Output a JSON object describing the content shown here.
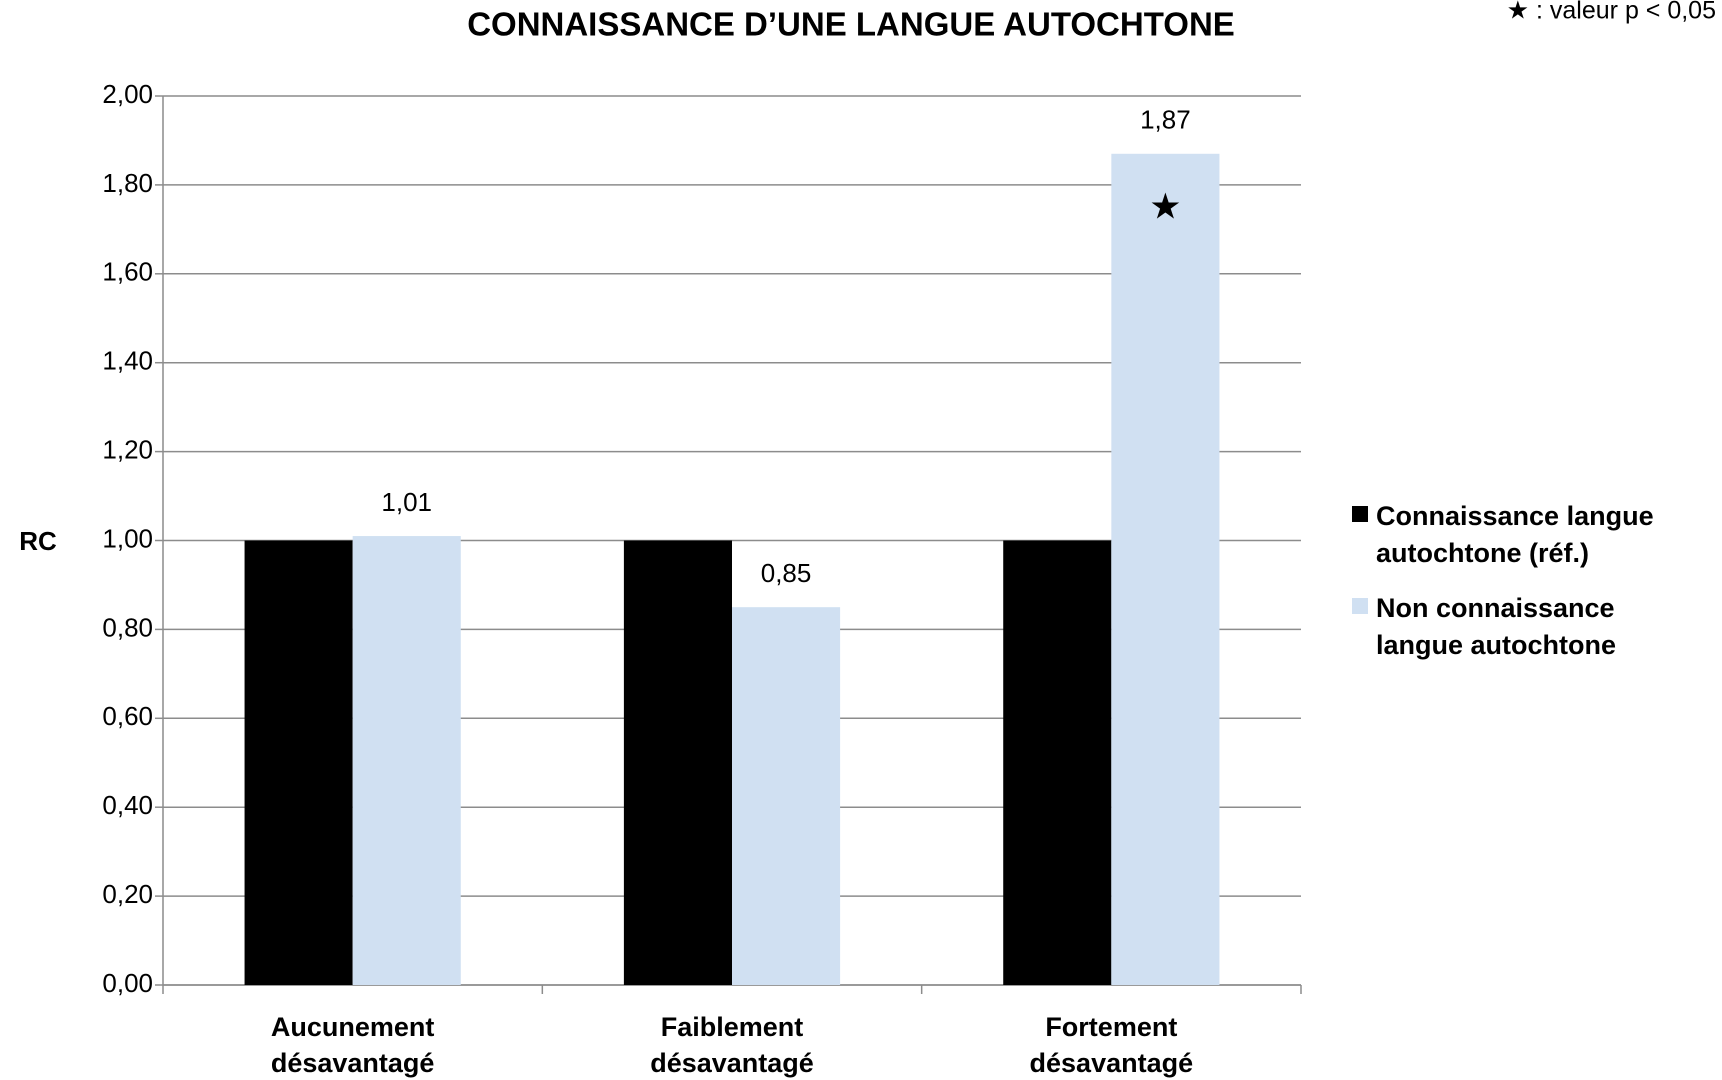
{
  "chart_data": {
    "type": "bar",
    "title": "CONNAISSANCE D’UNE LANGUE AUTOCHTONE",
    "note": "★ : valeur p < 0,05",
    "y_label": "RC",
    "categories": [
      "Aucunement désavantagé",
      "Faiblement désavantagé",
      "Fortement désavantagé"
    ],
    "series": [
      {
        "name": "Connaissance langue autochtone (réf.)",
        "color": "#000000",
        "values": [
          1.0,
          1.0,
          1.0
        ]
      },
      {
        "name": "Non connaissance langue autochtone",
        "color": "#d0e0f2",
        "values": [
          1.01,
          0.85,
          1.87
        ],
        "value_labels": [
          "1,01",
          "0,85",
          "1,87"
        ],
        "significance": [
          null,
          null,
          "★"
        ]
      }
    ],
    "ylim": [
      0,
      2
    ],
    "yticks": [
      {
        "value": 0,
        "label": "0,00"
      },
      {
        "value": 0.2,
        "label": "0,20"
      },
      {
        "value": 0.4,
        "label": "0,40"
      },
      {
        "value": 0.6,
        "label": "0,60"
      },
      {
        "value": 0.8,
        "label": "0,80"
      },
      {
        "value": 1,
        "label": "1,00"
      },
      {
        "value": 1.2,
        "label": "1,20"
      },
      {
        "value": 1.4,
        "label": "1,40"
      },
      {
        "value": 1.6,
        "label": "1,60"
      },
      {
        "value": 1.8,
        "label": "1,80"
      },
      {
        "value": 2,
        "label": "2,00"
      }
    ],
    "grid": true,
    "legend": "right"
  }
}
